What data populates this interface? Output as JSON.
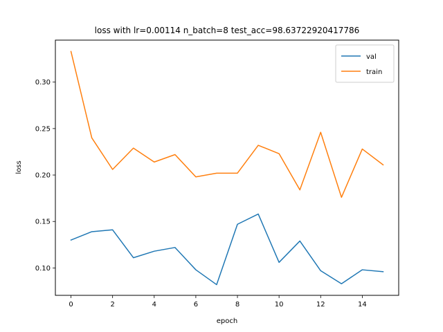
{
  "chart_data": {
    "type": "line",
    "title": "loss with lr=0.00114 n_batch=8 test_acc=98.63722920417786",
    "xlabel": "epoch",
    "ylabel": "loss",
    "x": [
      0,
      1,
      2,
      3,
      4,
      5,
      6,
      7,
      8,
      9,
      10,
      11,
      12,
      13,
      14,
      15
    ],
    "xlim": [
      -0.75,
      15.75
    ],
    "ylim": [
      0.0705,
      0.3452
    ],
    "xticks": [
      0,
      2,
      4,
      6,
      8,
      10,
      12,
      14
    ],
    "yticks": [
      0.1,
      0.15,
      0.2,
      0.25,
      0.3
    ],
    "ytick_labels": [
      "0.10",
      "0.15",
      "0.20",
      "0.25",
      "0.30"
    ],
    "grid": false,
    "legend_position": "top-right",
    "series": [
      {
        "name": "val",
        "color": "#1f77b4",
        "values": [
          0.13,
          0.139,
          0.141,
          0.111,
          0.118,
          0.122,
          0.098,
          0.082,
          0.147,
          0.158,
          0.106,
          0.129,
          0.097,
          0.083,
          0.098,
          0.096
        ]
      },
      {
        "name": "train",
        "color": "#ff7f0e",
        "values": [
          0.333,
          0.24,
          0.206,
          0.229,
          0.214,
          0.222,
          0.198,
          0.202,
          0.202,
          0.232,
          0.223,
          0.184,
          0.246,
          0.176,
          0.228,
          0.211
        ]
      }
    ]
  }
}
